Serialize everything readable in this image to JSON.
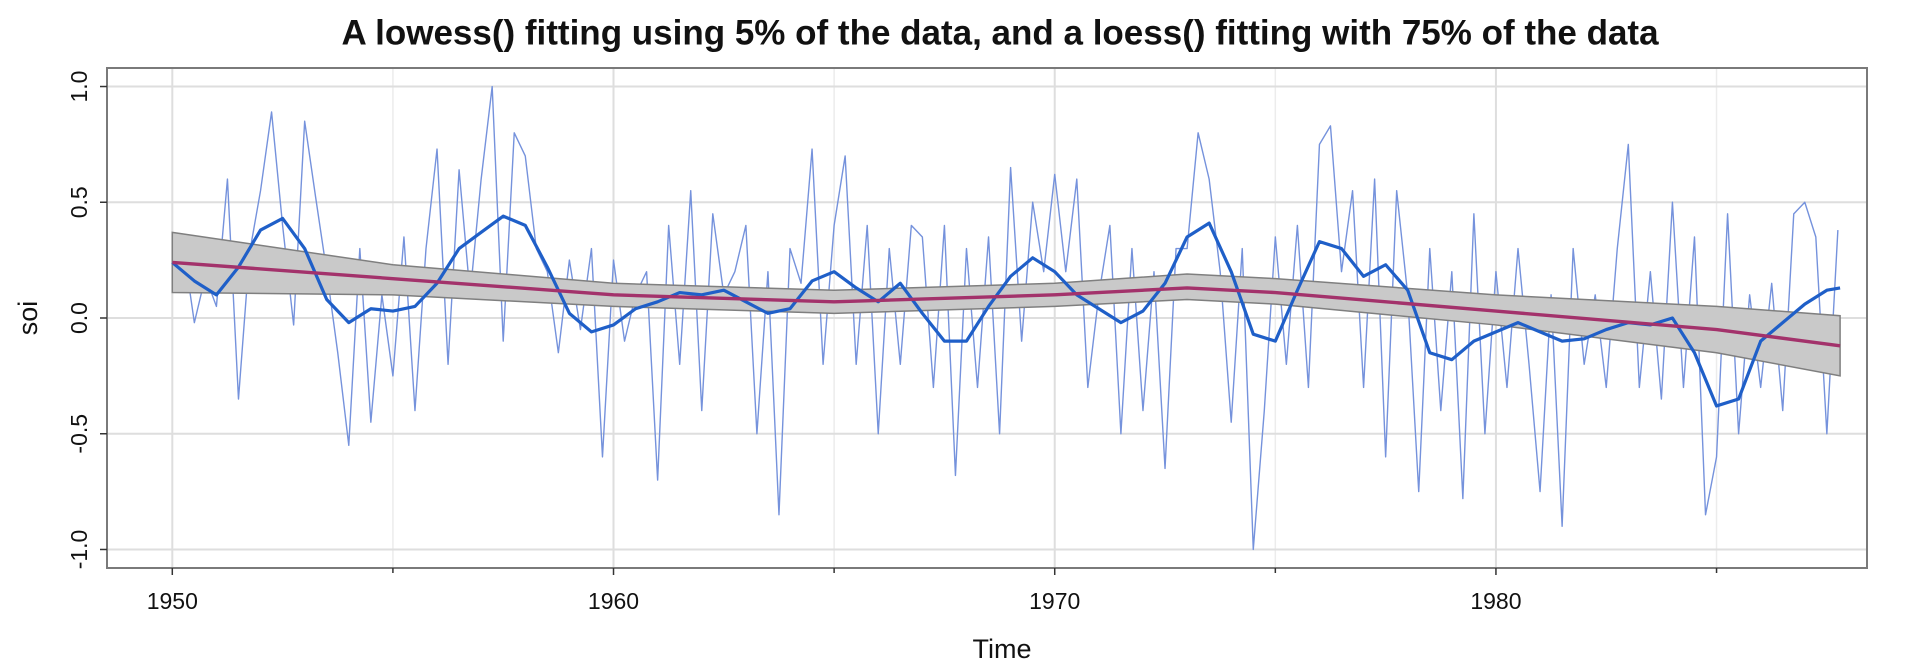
{
  "chart_data": {
    "type": "line",
    "title": "A lowess() fitting using 5% of the data, and a loess() fitting with 75% of the data",
    "xlabel": "Time",
    "ylabel": "soi",
    "xlim": [
      1948.52,
      1988.41
    ],
    "ylim": [
      -1.08,
      1.08
    ],
    "xticks": [
      1950,
      1960,
      1970,
      1980
    ],
    "xminor": [
      1955,
      1965,
      1975,
      1985
    ],
    "yticks": [
      {
        "value": -1,
        "label": "-1.0"
      },
      -0.5,
      {
        "value": 0,
        "label": "0.0"
      },
      0.5,
      {
        "value": 1,
        "label": "1.0"
      }
    ],
    "grid": true,
    "series": [
      {
        "kind": "line",
        "color": "#7592dc",
        "width": 1.4,
        "x": [
          1950,
          1950.25,
          1950.5,
          1950.75,
          1951,
          1951.25,
          1951.5,
          1951.75,
          1952,
          1952.25,
          1952.5,
          1952.75,
          1953,
          1953.25,
          1953.5,
          1953.75,
          1954,
          1954.25,
          1954.5,
          1954.75,
          1955,
          1955.25,
          1955.5,
          1955.75,
          1956,
          1956.25,
          1956.5,
          1956.75,
          1957,
          1957.25,
          1957.5,
          1957.75,
          1958,
          1958.25,
          1958.5,
          1958.75,
          1959,
          1959.25,
          1959.5,
          1959.75,
          1960,
          1960.25,
          1960.5,
          1960.75,
          1961,
          1961.25,
          1961.5,
          1961.75,
          1962,
          1962.25,
          1962.5,
          1962.75,
          1963,
          1963.25,
          1963.5,
          1963.75,
          1964,
          1964.25,
          1964.5,
          1964.75,
          1965,
          1965.25,
          1965.5,
          1965.75,
          1966,
          1966.25,
          1966.5,
          1966.75,
          1967,
          1967.25,
          1967.5,
          1967.75,
          1968,
          1968.25,
          1968.5,
          1968.75,
          1969,
          1969.25,
          1969.5,
          1969.75,
          1970,
          1970.25,
          1970.5,
          1970.75,
          1971,
          1971.25,
          1971.5,
          1971.75,
          1972,
          1972.25,
          1972.5,
          1972.75,
          1973,
          1973.25,
          1973.5,
          1973.75,
          1974,
          1974.25,
          1974.5,
          1974.75,
          1975,
          1975.25,
          1975.5,
          1975.75,
          1976,
          1976.25,
          1976.5,
          1976.75,
          1977,
          1977.25,
          1977.5,
          1977.75,
          1978,
          1978.25,
          1978.5,
          1978.75,
          1979,
          1979.25,
          1979.5,
          1979.75,
          1980,
          1980.25,
          1980.5,
          1980.75,
          1981,
          1981.25,
          1981.5,
          1981.75,
          1982,
          1982.25,
          1982.5,
          1982.75,
          1983,
          1983.25,
          1983.5,
          1983.75,
          1984,
          1984.25,
          1984.5,
          1984.75,
          1985,
          1985.25,
          1985.5,
          1985.75,
          1986,
          1986.25,
          1986.5,
          1986.75,
          1987,
          1987.25,
          1987.5,
          1987.75
        ],
        "values": [
          0.24,
          0.31,
          -0.02,
          0.18,
          0.05,
          0.6,
          -0.35,
          0.28,
          0.55,
          0.89,
          0.4,
          -0.03,
          0.85,
          0.52,
          0.2,
          -0.15,
          -0.55,
          0.3,
          -0.45,
          0.1,
          -0.25,
          0.35,
          -0.4,
          0.3,
          0.73,
          -0.2,
          0.64,
          0.1,
          0.6,
          1.0,
          -0.1,
          0.8,
          0.7,
          0.3,
          0.2,
          -0.15,
          0.25,
          -0.05,
          0.3,
          -0.6,
          0.25,
          -0.1,
          0.1,
          0.2,
          -0.7,
          0.4,
          -0.2,
          0.55,
          -0.4,
          0.45,
          0.1,
          0.2,
          0.4,
          -0.5,
          0.2,
          -0.85,
          0.3,
          0.15,
          0.73,
          -0.2,
          0.4,
          0.7,
          -0.2,
          0.4,
          -0.5,
          0.3,
          -0.2,
          0.4,
          0.35,
          -0.3,
          0.4,
          -0.68,
          0.3,
          -0.3,
          0.35,
          -0.5,
          0.65,
          -0.1,
          0.5,
          0.2,
          0.62,
          0.2,
          0.6,
          -0.3,
          0.1,
          0.4,
          -0.5,
          0.3,
          -0.4,
          0.2,
          -0.65,
          0.3,
          0.3,
          0.8,
          0.6,
          0.2,
          -0.45,
          0.3,
          -1.0,
          -0.4,
          0.35,
          -0.2,
          0.4,
          -0.3,
          0.75,
          0.83,
          0.2,
          0.55,
          -0.3,
          0.6,
          -0.6,
          0.55,
          0.1,
          -0.75,
          0.3,
          -0.4,
          0.2,
          -0.78,
          0.45,
          -0.5,
          0.2,
          -0.3,
          0.3,
          -0.2,
          -0.75,
          0.1,
          -0.9,
          0.3,
          -0.2,
          0.1,
          -0.3,
          0.3,
          0.75,
          -0.3,
          0.2,
          -0.35,
          0.5,
          -0.3,
          0.35,
          -0.85,
          -0.6,
          0.45,
          -0.5,
          0.1,
          -0.3,
          0.15,
          -0.4,
          0.45,
          0.5,
          0.35,
          -0.5,
          0.38
        ]
      },
      {
        "kind": "band",
        "color": "#c9c9c9",
        "edge": "#7f7f7f",
        "x": [
          1950,
          1955,
          1960,
          1965,
          1970,
          1973,
          1975,
          1980,
          1985,
          1987.8
        ],
        "lower": [
          0.11,
          0.1,
          0.05,
          0.02,
          0.05,
          0.08,
          0.06,
          -0.03,
          -0.15,
          -0.25
        ],
        "upper": [
          0.37,
          0.23,
          0.15,
          0.12,
          0.15,
          0.19,
          0.17,
          0.1,
          0.05,
          0.01
        ]
      },
      {
        "kind": "line",
        "color": "#1f5fc8",
        "width": 3.2,
        "x": [
          1950,
          1950.5,
          1951,
          1951.5,
          1952,
          1952.5,
          1953,
          1953.5,
          1954,
          1954.5,
          1955,
          1955.5,
          1956,
          1956.5,
          1957,
          1957.5,
          1958,
          1958.5,
          1959,
          1959.5,
          1960,
          1960.5,
          1961,
          1961.5,
          1962,
          1962.5,
          1963,
          1963.5,
          1964,
          1964.5,
          1965,
          1965.5,
          1966,
          1966.5,
          1967,
          1967.5,
          1968,
          1968.5,
          1969,
          1969.5,
          1970,
          1970.5,
          1971,
          1971.5,
          1972,
          1972.5,
          1973,
          1973.5,
          1974,
          1974.5,
          1975,
          1975.5,
          1976,
          1976.5,
          1977,
          1977.5,
          1978,
          1978.5,
          1979,
          1979.5,
          1980,
          1980.5,
          1981,
          1981.5,
          1982,
          1982.5,
          1983,
          1983.5,
          1984,
          1984.5,
          1985,
          1985.5,
          1986,
          1986.5,
          1987,
          1987.5,
          1987.8
        ],
        "values": [
          0.24,
          0.16,
          0.1,
          0.22,
          0.38,
          0.43,
          0.3,
          0.08,
          -0.02,
          0.04,
          0.03,
          0.05,
          0.15,
          0.3,
          0.37,
          0.44,
          0.4,
          0.22,
          0.02,
          -0.06,
          -0.03,
          0.04,
          0.07,
          0.11,
          0.1,
          0.12,
          0.07,
          0.02,
          0.04,
          0.16,
          0.2,
          0.13,
          0.07,
          0.15,
          0.02,
          -0.1,
          -0.1,
          0.05,
          0.18,
          0.26,
          0.2,
          0.1,
          0.04,
          -0.02,
          0.03,
          0.15,
          0.35,
          0.41,
          0.2,
          -0.07,
          -0.1,
          0.12,
          0.33,
          0.3,
          0.18,
          0.23,
          0.12,
          -0.15,
          -0.18,
          -0.1,
          -0.06,
          -0.02,
          -0.06,
          -0.1,
          -0.09,
          -0.05,
          -0.02,
          -0.03,
          0.0,
          -0.15,
          -0.38,
          -0.35,
          -0.1,
          -0.02,
          0.06,
          0.12,
          0.13
        ]
      },
      {
        "kind": "line",
        "color": "#a3326b",
        "width": 3.4,
        "x": [
          1950,
          1955,
          1960,
          1965,
          1970,
          1973,
          1975,
          1980,
          1985,
          1987.8
        ],
        "values": [
          0.24,
          0.17,
          0.1,
          0.07,
          0.1,
          0.13,
          0.11,
          0.03,
          -0.05,
          -0.12
        ]
      }
    ]
  }
}
